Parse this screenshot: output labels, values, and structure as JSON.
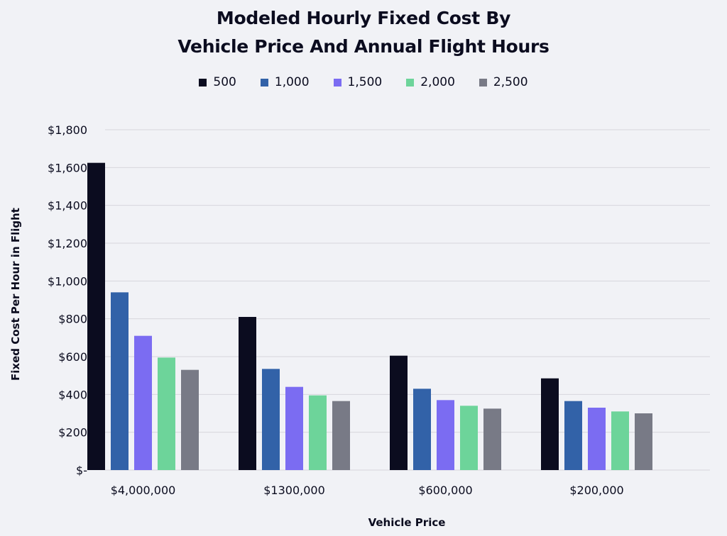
{
  "chart_data": {
    "type": "bar",
    "title_lines": [
      "Modeled Hourly Fixed Cost By",
      "Vehicle Price And Annual Flight Hours"
    ],
    "xlabel": "Vehicle Price",
    "ylabel": "Fixed Cost Per Hour in Flight",
    "categories": [
      "$4,000,000",
      "$1300,000",
      "$600,000",
      "$200,000"
    ],
    "series": [
      {
        "name": "500",
        "color": "#0b0c1f",
        "values": [
          1625,
          810,
          605,
          485
        ]
      },
      {
        "name": "1,000",
        "color": "#3262a8",
        "values": [
          940,
          535,
          430,
          365
        ]
      },
      {
        "name": "1,500",
        "color": "#7b6cf2",
        "values": [
          710,
          440,
          370,
          330
        ]
      },
      {
        "name": "2,000",
        "color": "#6dd49a",
        "values": [
          595,
          395,
          340,
          310
        ]
      },
      {
        "name": "2,500",
        "color": "#787a86",
        "values": [
          530,
          365,
          325,
          300
        ]
      }
    ],
    "ylim": [
      0,
      1800
    ],
    "yticks": [
      0,
      200,
      400,
      600,
      800,
      1000,
      1200,
      1400,
      1600,
      1800
    ],
    "ytick_labels": [
      "$-",
      "$200",
      "$400",
      "$600",
      "$800",
      "$1,000",
      "$1,200",
      "$1,400",
      "$1,600",
      "$1,800"
    ],
    "grid": true,
    "legend_position": "top-center"
  }
}
